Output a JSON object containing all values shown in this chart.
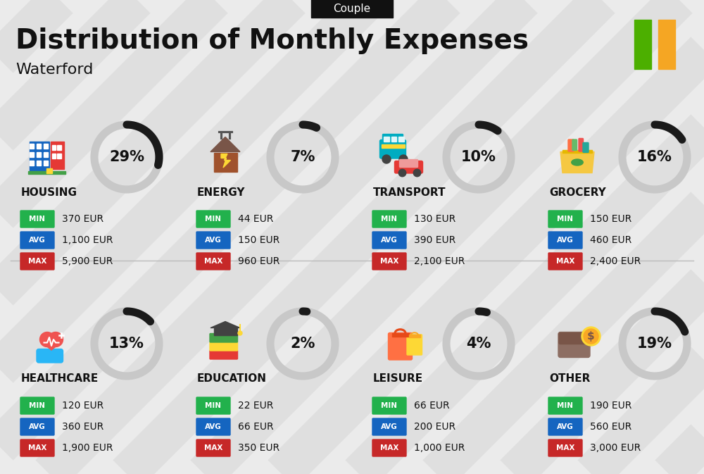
{
  "title": "Distribution of Monthly Expenses",
  "subtitle": "Waterford",
  "tag": "Couple",
  "bg_color": "#ebebeb",
  "flag_green": "#4caf00",
  "flag_orange": "#f5a623",
  "categories": [
    {
      "name": "HOUSING",
      "pct": 29,
      "min": "370 EUR",
      "avg": "1,100 EUR",
      "max": "5,900 EUR",
      "col": 0,
      "row": 0
    },
    {
      "name": "ENERGY",
      "pct": 7,
      "min": "44 EUR",
      "avg": "150 EUR",
      "max": "960 EUR",
      "col": 1,
      "row": 0
    },
    {
      "name": "TRANSPORT",
      "pct": 10,
      "min": "130 EUR",
      "avg": "390 EUR",
      "max": "2,100 EUR",
      "col": 2,
      "row": 0
    },
    {
      "name": "GROCERY",
      "pct": 16,
      "min": "150 EUR",
      "avg": "460 EUR",
      "max": "2,400 EUR",
      "col": 3,
      "row": 0
    },
    {
      "name": "HEALTHCARE",
      "pct": 13,
      "min": "120 EUR",
      "avg": "360 EUR",
      "max": "1,900 EUR",
      "col": 0,
      "row": 1
    },
    {
      "name": "EDUCATION",
      "pct": 2,
      "min": "22 EUR",
      "avg": "66 EUR",
      "max": "350 EUR",
      "col": 1,
      "row": 1
    },
    {
      "name": "LEISURE",
      "pct": 4,
      "min": "66 EUR",
      "avg": "200 EUR",
      "max": "1,000 EUR",
      "col": 2,
      "row": 1
    },
    {
      "name": "OTHER",
      "pct": 19,
      "min": "190 EUR",
      "avg": "560 EUR",
      "max": "3,000 EUR",
      "col": 3,
      "row": 1
    }
  ],
  "min_color": "#22b14c",
  "avg_color": "#1565c0",
  "max_color": "#c62828",
  "text_color": "#111111",
  "donut_bg": "#c8c8c8",
  "donut_fg": "#1a1a1a",
  "stripe_color": "#d8d8d8"
}
